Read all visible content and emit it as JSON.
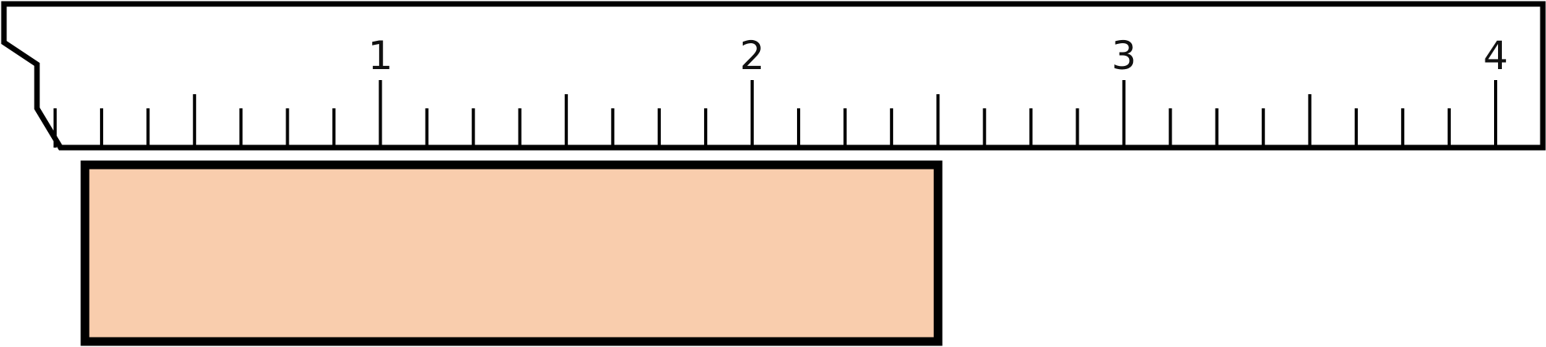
{
  "ruler": {
    "unit_labels": [
      "1",
      "2",
      "3",
      "4"
    ],
    "min": 0,
    "max": 4,
    "subdivisions_per_unit": 8,
    "outline_color": "#000000"
  },
  "bar": {
    "start": 0,
    "end": 2.5,
    "fill_color": "#f9cdad",
    "stroke_color": "#000000"
  }
}
